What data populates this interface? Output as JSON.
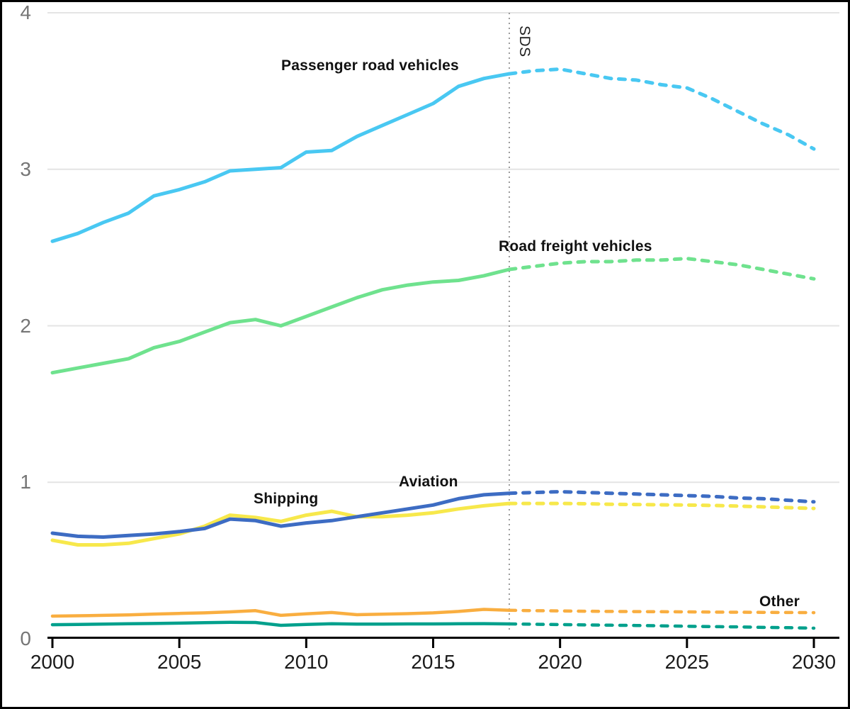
{
  "chart_data": {
    "type": "line",
    "title": "",
    "xlabel": "",
    "ylabel": "",
    "x_axis": {
      "min": 2000,
      "max": 2030,
      "tick_labels": [
        "2000",
        "2005",
        "2010",
        "2015",
        "2020",
        "2025",
        "2030"
      ],
      "tick_values": [
        2000,
        2005,
        2010,
        2015,
        2020,
        2025,
        2030
      ]
    },
    "y_axis": {
      "min": 0,
      "max": 4,
      "tick_labels": [
        "0",
        "1",
        "2",
        "3",
        "4"
      ],
      "tick_values": [
        0,
        1,
        2,
        3,
        4
      ]
    },
    "grid": "horizontal-only",
    "solid_until_year": 2018,
    "projection_style": "dashed",
    "years": [
      2000,
      2001,
      2002,
      2003,
      2004,
      2005,
      2006,
      2007,
      2008,
      2009,
      2010,
      2011,
      2012,
      2013,
      2014,
      2015,
      2016,
      2017,
      2018,
      2019,
      2020,
      2021,
      2022,
      2023,
      2024,
      2025,
      2026,
      2027,
      2028,
      2029,
      2030
    ],
    "series": [
      {
        "id": "passenger-road-vehicles",
        "label": "Passenger road vehicles",
        "color": "#49C8F2",
        "values": [
          2.54,
          2.59,
          2.66,
          2.72,
          2.83,
          2.87,
          2.92,
          2.99,
          3.0,
          3.01,
          3.11,
          3.12,
          3.21,
          3.28,
          3.35,
          3.42,
          3.53,
          3.58,
          3.61,
          3.63,
          3.64,
          3.61,
          3.58,
          3.57,
          3.54,
          3.52,
          3.45,
          3.37,
          3.29,
          3.22,
          3.13
        ]
      },
      {
        "id": "road-freight-vehicles",
        "label": "Road freight vehicles",
        "color": "#6FE28E",
        "values": [
          1.7,
          1.73,
          1.76,
          1.79,
          1.86,
          1.9,
          1.96,
          2.02,
          2.04,
          2.0,
          2.06,
          2.12,
          2.18,
          2.23,
          2.26,
          2.28,
          2.29,
          2.32,
          2.36,
          2.38,
          2.4,
          2.41,
          2.41,
          2.42,
          2.42,
          2.43,
          2.41,
          2.39,
          2.36,
          2.33,
          2.3
        ]
      },
      {
        "id": "shipping",
        "label": "Shipping",
        "color": "#F7E84B",
        "values": [
          0.63,
          0.6,
          0.6,
          0.61,
          0.64,
          0.67,
          0.72,
          0.79,
          0.775,
          0.75,
          0.79,
          0.815,
          0.78,
          0.78,
          0.79,
          0.805,
          0.83,
          0.85,
          0.865,
          0.865,
          0.865,
          0.863,
          0.86,
          0.858,
          0.856,
          0.855,
          0.852,
          0.848,
          0.843,
          0.838,
          0.833
        ]
      },
      {
        "id": "aviation",
        "label": "Aviation",
        "color": "#3D6CC3",
        "values": [
          0.675,
          0.655,
          0.65,
          0.66,
          0.67,
          0.685,
          0.705,
          0.765,
          0.755,
          0.72,
          0.74,
          0.755,
          0.78,
          0.805,
          0.83,
          0.855,
          0.895,
          0.92,
          0.93,
          0.935,
          0.94,
          0.935,
          0.93,
          0.925,
          0.92,
          0.915,
          0.91,
          0.9,
          0.895,
          0.885,
          0.875
        ]
      },
      {
        "id": "other",
        "label": "Other",
        "color": "#F9AE40",
        "values": [
          0.145,
          0.147,
          0.15,
          0.153,
          0.158,
          0.162,
          0.166,
          0.172,
          0.18,
          0.15,
          0.16,
          0.168,
          0.154,
          0.157,
          0.161,
          0.166,
          0.175,
          0.188,
          0.182,
          0.18,
          0.178,
          0.176,
          0.175,
          0.174,
          0.173,
          0.172,
          0.171,
          0.17,
          0.169,
          0.168,
          0.167
        ]
      },
      {
        "id": "unlabeled-teal-series",
        "label": "",
        "color": "#00A08C",
        "values": [
          0.09,
          0.092,
          0.094,
          0.096,
          0.098,
          0.1,
          0.103,
          0.105,
          0.104,
          0.086,
          0.092,
          0.096,
          0.094,
          0.094,
          0.095,
          0.095,
          0.096,
          0.097,
          0.095,
          0.093,
          0.091,
          0.089,
          0.087,
          0.085,
          0.083,
          0.08,
          0.078,
          0.076,
          0.073,
          0.071,
          0.068
        ]
      }
    ],
    "annotations": [
      {
        "id": "sds",
        "text": "SDS",
        "x": 2018,
        "style": "vertical-dotted-line",
        "line_color": "#9B9B9B"
      }
    ],
    "style_colors": {
      "gridline": "#E4E4E4",
      "axis": "#000000",
      "y_tick_text": "#757575",
      "x_tick_text": "#1A1A1A",
      "frame_border": "#000000",
      "background": "#FFFFFF"
    }
  }
}
